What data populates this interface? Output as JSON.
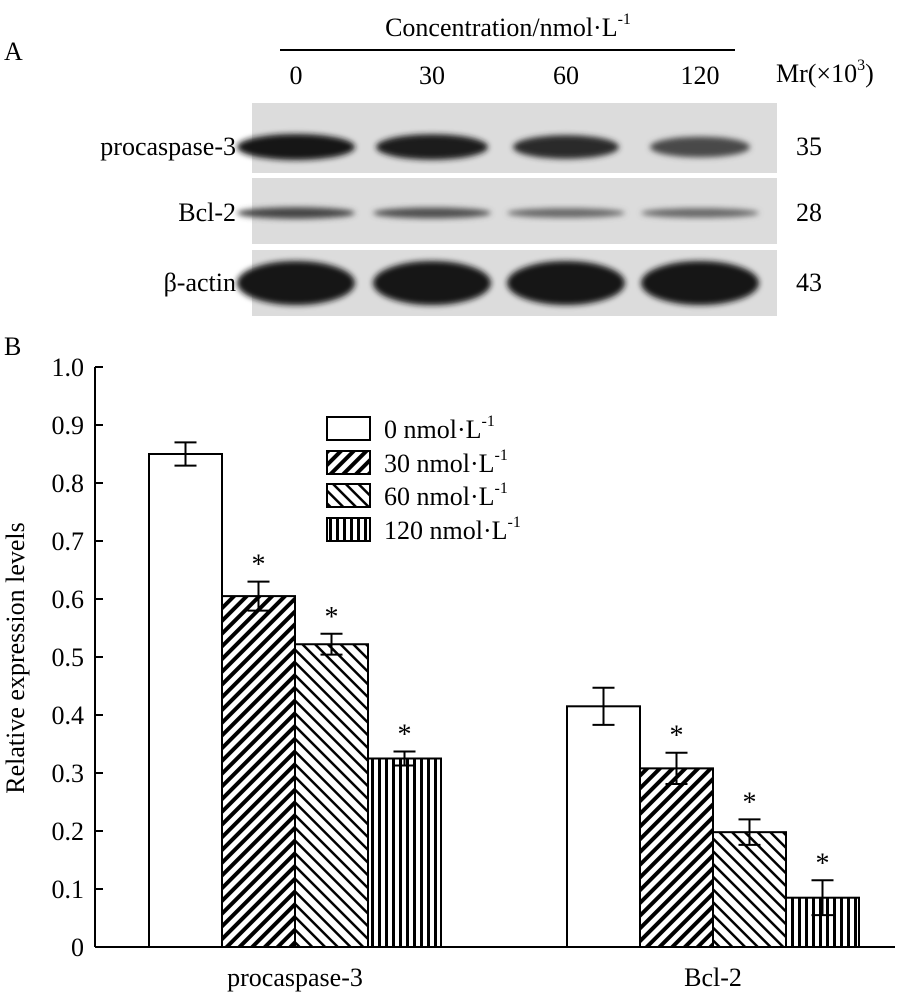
{
  "panel_a": {
    "label": "A",
    "header": {
      "title_base": "Concentration/nmol·L",
      "title_sup": "-1",
      "lanes": [
        "0",
        "30",
        "60",
        "120"
      ],
      "mr_base": "Mr(×10",
      "mr_sup": "3",
      "mr_close": ")"
    },
    "rows": [
      {
        "name": "procaspase-3",
        "mr": "35",
        "intensity": [
          1.0,
          0.95,
          0.8,
          0.55
        ]
      },
      {
        "name": "Bcl-2",
        "mr": "28",
        "intensity": [
          0.6,
          0.5,
          0.3,
          0.3
        ]
      },
      {
        "name": "β-actin",
        "mr": "43",
        "intensity": [
          1.0,
          1.0,
          1.0,
          1.0
        ]
      }
    ]
  },
  "panel_b": {
    "label": "B"
  },
  "chart_data": {
    "type": "bar",
    "title": "",
    "xlabel": "",
    "ylabel": "Relative expression levels",
    "ylim": [
      0,
      1.0
    ],
    "yticks": [
      "0",
      "0.1",
      "0.2",
      "0.3",
      "0.4",
      "0.5",
      "0.6",
      "0.7",
      "0.8",
      "0.9",
      "1.0"
    ],
    "categories": [
      "procaspase-3",
      "Bcl-2"
    ],
    "legend_position": "top-center",
    "series": [
      {
        "name": "0 nmol·L",
        "name_sup": "-1",
        "pattern": "white",
        "values": [
          0.85,
          0.415
        ],
        "errors": [
          0.02,
          0.032
        ],
        "significant": [
          false,
          false
        ]
      },
      {
        "name": "30 nmol·L",
        "name_sup": "-1",
        "pattern": "diag-back",
        "values": [
          0.605,
          0.308
        ],
        "errors": [
          0.025,
          0.027
        ],
        "significant": [
          true,
          true
        ]
      },
      {
        "name": "60 nmol·L",
        "name_sup": "-1",
        "pattern": "diag-fwd",
        "values": [
          0.522,
          0.198
        ],
        "errors": [
          0.018,
          0.022
        ],
        "significant": [
          true,
          true
        ]
      },
      {
        "name": "120 nmol·L",
        "name_sup": "-1",
        "pattern": "vertical",
        "values": [
          0.325,
          0.085
        ],
        "errors": [
          0.012,
          0.03
        ],
        "significant": [
          true,
          true
        ]
      }
    ],
    "significance_marker": "*"
  }
}
